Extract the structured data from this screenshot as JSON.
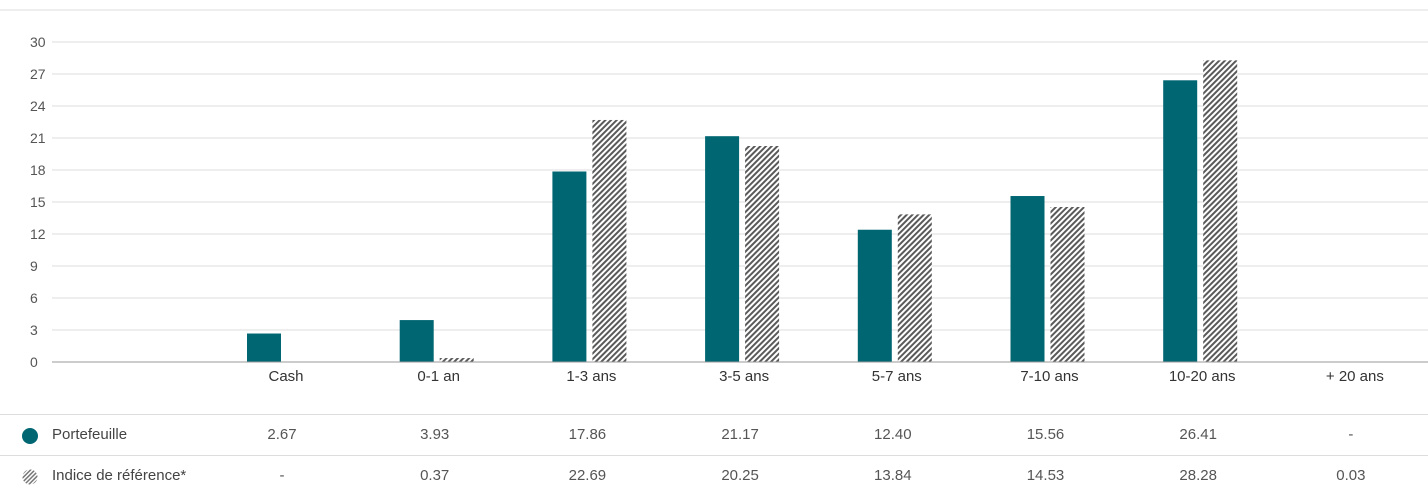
{
  "colors": {
    "portfolio": "#006672",
    "benchmark_pattern": "#5a5a5a",
    "grid": "#dddddd",
    "axis": "#999999"
  },
  "chart_data": {
    "type": "bar",
    "categories": [
      "Cash",
      "0-1 an",
      "1-3 ans",
      "3-5 ans",
      "5-7 ans",
      "7-10 ans",
      "10-20 ans",
      "+ 20 ans"
    ],
    "series": [
      {
        "name": "Portefeuille",
        "values": [
          2.67,
          3.93,
          17.86,
          21.17,
          12.4,
          15.56,
          26.41,
          null
        ]
      },
      {
        "name": "Indice de référence*",
        "values": [
          null,
          0.37,
          22.69,
          20.25,
          13.84,
          14.53,
          28.28,
          0.03
        ]
      }
    ],
    "ylim": [
      0,
      30
    ],
    "yticks": [
      "0",
      "3",
      "6",
      "9",
      "12",
      "15",
      "18",
      "21",
      "24",
      "27",
      "30"
    ],
    "grid": true,
    "legend": "bottom table"
  },
  "table": {
    "rows": [
      {
        "label": "Portefeuille",
        "icon": "filled-circle-icon",
        "cells": [
          "2.67",
          "3.93",
          "17.86",
          "21.17",
          "12.40",
          "15.56",
          "26.41",
          "-"
        ]
      },
      {
        "label": "Indice de référence*",
        "icon": "hatched-circle-icon",
        "cells": [
          "-",
          "0.37",
          "22.69",
          "20.25",
          "13.84",
          "14.53",
          "28.28",
          "0.03"
        ]
      }
    ]
  }
}
